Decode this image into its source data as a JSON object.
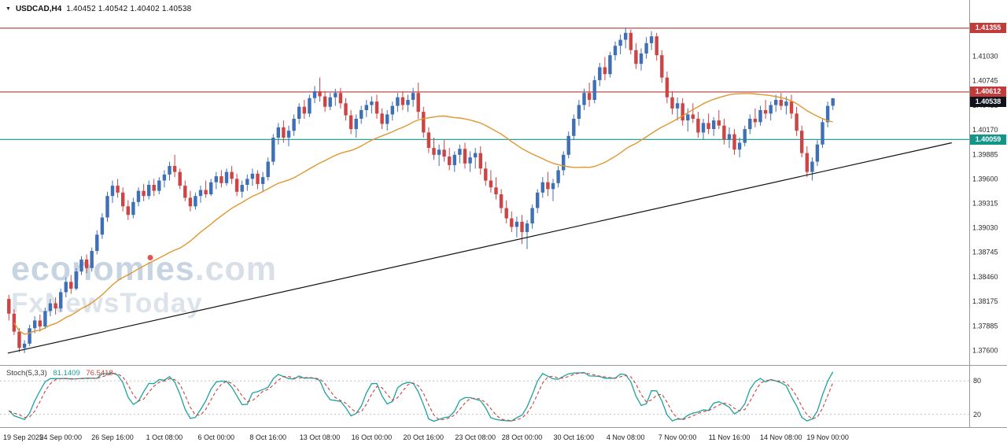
{
  "header": {
    "caret": "▼",
    "symbol_tf": "USDCAD,H4",
    "ohlc": "1.40452 1.40542 1.40402 1.40538"
  },
  "watermark": {
    "part1": "econom",
    "part_i": "ı",
    "part2": "es",
    "suffix": ".com",
    "line2": "FxNewsToday"
  },
  "stoch": {
    "label": "Stoch(5,3,3)",
    "k_value": "81.1409",
    "d_value": "76.5418",
    "k_period": 5,
    "d_period": 3,
    "slowing": 3,
    "levels": [
      80,
      20
    ],
    "level_labels": [
      "80",
      "20"
    ],
    "k_color": "#1ba39c",
    "d_color": "#cc4040",
    "range": [
      0,
      100
    ]
  },
  "colors": {
    "up": "#3f6fb4",
    "down": "#cc4444",
    "ma": "#e0972f",
    "trendline": "#111111",
    "axis_text": "#2a2a2a",
    "date_text": "#1c1c1c",
    "separator": "#9a9a9a",
    "level_line": "#c0c0c0"
  },
  "chart_data": {
    "type": "candlestick",
    "symbol": "USDCAD",
    "timeframe": "H4",
    "ohlc_display": {
      "open": "1.40452",
      "high": "1.40542",
      "low": "1.40402",
      "close": "1.40538"
    },
    "price_range": [
      1.3745,
      1.415
    ],
    "y_ticks": [
      "1.41030",
      "1.40745",
      "1.40455",
      "1.40170",
      "1.39885",
      "1.39600",
      "1.39315",
      "1.39030",
      "1.38745",
      "1.38460",
      "1.38175",
      "1.37885",
      "1.37600"
    ],
    "x_labels": [
      {
        "label": "19 Sep 2025",
        "i": 0
      },
      {
        "label": "24 Sep 00:00",
        "i": 10
      },
      {
        "label": "26 Sep 16:00",
        "i": 20
      },
      {
        "label": "1 Oct 08:00",
        "i": 30
      },
      {
        "label": "6 Oct 00:00",
        "i": 40
      },
      {
        "label": "8 Oct 16:00",
        "i": 50
      },
      {
        "label": "13 Oct 08:00",
        "i": 60
      },
      {
        "label": "16 Oct 00:00",
        "i": 70
      },
      {
        "label": "20 Oct 16:00",
        "i": 80
      },
      {
        "label": "23 Oct 08:00",
        "i": 90
      },
      {
        "label": "28 Oct 00:00",
        "i": 99
      },
      {
        "label": "30 Oct 16:00",
        "i": 109
      },
      {
        "label": "4 Nov 08:00",
        "i": 119
      },
      {
        "label": "7 Nov 00:00",
        "i": 129
      },
      {
        "label": "11 Nov 16:00",
        "i": 139
      },
      {
        "label": "14 Nov 08:00",
        "i": 149
      },
      {
        "label": "19 Nov 00:00",
        "i": 158
      }
    ],
    "hlines": [
      {
        "price": 1.41355,
        "label": "1.41355",
        "line": "#b03a3a",
        "badge": "#c13b3b"
      },
      {
        "price": 1.40612,
        "label": "1.40612",
        "line": "#b03a3a",
        "badge": "#c13b3b"
      },
      {
        "price": 1.40059,
        "label": "1.40059",
        "line": "#17958a",
        "badge": "#12968a"
      }
    ],
    "current_price": {
      "value": 1.40538,
      "label": "1.40538",
      "badge": "#10121c"
    },
    "trendline": {
      "x1_frac": 0.008,
      "price1": 1.3757,
      "x2_frac": 0.982,
      "price2": 1.4002
    },
    "ma": {
      "type": "smoothed",
      "period": 34
    },
    "candles": [
      [
        1.382,
        1.3825,
        1.3795,
        1.3803
      ],
      [
        1.3803,
        1.3808,
        1.3778,
        1.3782
      ],
      [
        1.3782,
        1.3786,
        1.3758,
        1.3763
      ],
      [
        1.3763,
        1.3772,
        1.3757,
        1.3768
      ],
      [
        1.3768,
        1.379,
        1.3765,
        1.3786
      ],
      [
        1.3786,
        1.38,
        1.378,
        1.3795
      ],
      [
        1.3795,
        1.3802,
        1.3782,
        1.3788
      ],
      [
        1.3788,
        1.381,
        1.3785,
        1.3806
      ],
      [
        1.3806,
        1.382,
        1.38,
        1.3815
      ],
      [
        1.3815,
        1.3822,
        1.3802,
        1.3809
      ],
      [
        1.3809,
        1.3832,
        1.3805,
        1.3828
      ],
      [
        1.3828,
        1.3845,
        1.3822,
        1.384
      ],
      [
        1.384,
        1.3848,
        1.3826,
        1.3832
      ],
      [
        1.3832,
        1.3856,
        1.383,
        1.3852
      ],
      [
        1.3852,
        1.387,
        1.3848,
        1.3866
      ],
      [
        1.3866,
        1.3872,
        1.385,
        1.3856
      ],
      [
        1.3856,
        1.388,
        1.3852,
        1.3876
      ],
      [
        1.3876,
        1.39,
        1.3872,
        1.3895
      ],
      [
        1.3895,
        1.392,
        1.389,
        1.3915
      ],
      [
        1.3915,
        1.3945,
        1.391,
        1.394
      ],
      [
        1.394,
        1.3958,
        1.3932,
        1.3952
      ],
      [
        1.3952,
        1.396,
        1.3938,
        1.3944
      ],
      [
        1.3944,
        1.395,
        1.3922,
        1.3928
      ],
      [
        1.3928,
        1.3935,
        1.3912,
        1.3918
      ],
      [
        1.3918,
        1.3938,
        1.3914,
        1.3933
      ],
      [
        1.3933,
        1.395,
        1.3928,
        1.3946
      ],
      [
        1.3946,
        1.3954,
        1.3934,
        1.394
      ],
      [
        1.394,
        1.3958,
        1.3936,
        1.3953
      ],
      [
        1.3953,
        1.396,
        1.394,
        1.3946
      ],
      [
        1.3946,
        1.3962,
        1.3942,
        1.3958
      ],
      [
        1.3958,
        1.397,
        1.395,
        1.3965
      ],
      [
        1.3965,
        1.398,
        1.3958,
        1.3975
      ],
      [
        1.3975,
        1.3988,
        1.3962,
        1.3968
      ],
      [
        1.3968,
        1.3972,
        1.3948,
        1.3952
      ],
      [
        1.3952,
        1.3958,
        1.3934,
        1.3938
      ],
      [
        1.3938,
        1.3946,
        1.3922,
        1.3928
      ],
      [
        1.3928,
        1.3944,
        1.3924,
        1.394
      ],
      [
        1.394,
        1.3952,
        1.3932,
        1.3947
      ],
      [
        1.3947,
        1.3958,
        1.3938,
        1.3942
      ],
      [
        1.3942,
        1.396,
        1.394,
        1.3956
      ],
      [
        1.3956,
        1.3968,
        1.3948,
        1.3963
      ],
      [
        1.3963,
        1.397,
        1.395,
        1.3955
      ],
      [
        1.3955,
        1.3972,
        1.3952,
        1.3968
      ],
      [
        1.3968,
        1.3975,
        1.3954,
        1.396
      ],
      [
        1.396,
        1.3966,
        1.394,
        1.3945
      ],
      [
        1.3945,
        1.3958,
        1.3938,
        1.3953
      ],
      [
        1.3953,
        1.3965,
        1.3946,
        1.396
      ],
      [
        1.396,
        1.3972,
        1.3952,
        1.3966
      ],
      [
        1.3966,
        1.397,
        1.3948,
        1.3954
      ],
      [
        1.3954,
        1.3968,
        1.3946,
        1.3962
      ],
      [
        1.3962,
        1.3985,
        1.3958,
        1.398
      ],
      [
        1.398,
        1.4012,
        1.3976,
        1.4008
      ],
      [
        1.4008,
        1.4025,
        1.4,
        1.402
      ],
      [
        1.402,
        1.4028,
        1.4002,
        1.4008
      ],
      [
        1.4008,
        1.4022,
        1.3998,
        1.4016
      ],
      [
        1.4016,
        1.4035,
        1.401,
        1.403
      ],
      [
        1.403,
        1.4048,
        1.4024,
        1.4044
      ],
      [
        1.4044,
        1.4052,
        1.403,
        1.4036
      ],
      [
        1.4036,
        1.4058,
        1.4032,
        1.4054
      ],
      [
        1.4054,
        1.4068,
        1.4048,
        1.4062
      ],
      [
        1.4062,
        1.4078,
        1.405,
        1.4056
      ],
      [
        1.4056,
        1.4062,
        1.4038,
        1.4044
      ],
      [
        1.4044,
        1.406,
        1.404,
        1.4055
      ],
      [
        1.4055,
        1.4065,
        1.4045,
        1.406
      ],
      [
        1.406,
        1.4066,
        1.4042,
        1.4048
      ],
      [
        1.4048,
        1.4054,
        1.4028,
        1.4034
      ],
      [
        1.4034,
        1.404,
        1.4012,
        1.4018
      ],
      [
        1.4018,
        1.4035,
        1.4008,
        1.403
      ],
      [
        1.403,
        1.4045,
        1.4024,
        1.404
      ],
      [
        1.404,
        1.4052,
        1.4032,
        1.4046
      ],
      [
        1.4046,
        1.4056,
        1.4036,
        1.405
      ],
      [
        1.405,
        1.4058,
        1.403,
        1.4036
      ],
      [
        1.4036,
        1.4042,
        1.4018,
        1.4024
      ],
      [
        1.4024,
        1.404,
        1.4016,
        1.4035
      ],
      [
        1.4035,
        1.405,
        1.4028,
        1.4045
      ],
      [
        1.4045,
        1.406,
        1.4038,
        1.4055
      ],
      [
        1.4055,
        1.4062,
        1.404,
        1.4046
      ],
      [
        1.4046,
        1.4058,
        1.4038,
        1.4052
      ],
      [
        1.4052,
        1.4066,
        1.4044,
        1.406
      ],
      [
        1.406,
        1.4072,
        1.403,
        1.4038
      ],
      [
        1.4038,
        1.4044,
        1.4008,
        1.4014
      ],
      [
        1.4014,
        1.402,
        1.399,
        1.3996
      ],
      [
        1.3996,
        1.4008,
        1.3982,
        1.3988
      ],
      [
        1.3988,
        1.4,
        1.3975,
        1.3994
      ],
      [
        1.3994,
        1.4005,
        1.398,
        1.3986
      ],
      [
        1.3986,
        1.3996,
        1.397,
        1.3976
      ],
      [
        1.3976,
        1.3992,
        1.3968,
        1.3988
      ],
      [
        1.3988,
        1.4,
        1.3978,
        1.3995
      ],
      [
        1.3995,
        1.4002,
        1.3972,
        1.3978
      ],
      [
        1.3978,
        1.3992,
        1.3968,
        1.3985
      ],
      [
        1.3985,
        1.3996,
        1.3972,
        1.399
      ],
      [
        1.399,
        1.3998,
        1.3965,
        1.3972
      ],
      [
        1.3972,
        1.398,
        1.3952,
        1.3958
      ],
      [
        1.3958,
        1.397,
        1.3944,
        1.395
      ],
      [
        1.395,
        1.3962,
        1.3936,
        1.3942
      ],
      [
        1.3942,
        1.3948,
        1.392,
        1.3926
      ],
      [
        1.3926,
        1.3935,
        1.3908,
        1.3914
      ],
      [
        1.3914,
        1.3922,
        1.3898,
        1.3904
      ],
      [
        1.3904,
        1.3916,
        1.3892,
        1.391
      ],
      [
        1.391,
        1.3918,
        1.3884,
        1.3898
      ],
      [
        1.3898,
        1.3912,
        1.3878,
        1.3908
      ],
      [
        1.3908,
        1.393,
        1.3902,
        1.3926
      ],
      [
        1.3926,
        1.3948,
        1.392,
        1.3944
      ],
      [
        1.3944,
        1.3962,
        1.3938,
        1.3956
      ],
      [
        1.3956,
        1.3968,
        1.394,
        1.3948
      ],
      [
        1.3948,
        1.396,
        1.3934,
        1.3955
      ],
      [
        1.3955,
        1.3975,
        1.395,
        1.397
      ],
      [
        1.397,
        1.3992,
        1.3964,
        1.3988
      ],
      [
        1.3988,
        1.4015,
        1.3984,
        1.401
      ],
      [
        1.401,
        1.4035,
        1.4005,
        1.403
      ],
      [
        1.403,
        1.4052,
        1.4022,
        1.4046
      ],
      [
        1.4046,
        1.4065,
        1.404,
        1.406
      ],
      [
        1.406,
        1.4072,
        1.4044,
        1.4052
      ],
      [
        1.4052,
        1.408,
        1.4048,
        1.4075
      ],
      [
        1.4075,
        1.4095,
        1.4068,
        1.409
      ],
      [
        1.409,
        1.4102,
        1.4075,
        1.4082
      ],
      [
        1.4082,
        1.4108,
        1.4078,
        1.4104
      ],
      [
        1.4104,
        1.412,
        1.4098,
        1.4115
      ],
      [
        1.4115,
        1.4128,
        1.4105,
        1.4122
      ],
      [
        1.4122,
        1.4136,
        1.4112,
        1.413
      ],
      [
        1.413,
        1.4134,
        1.4105,
        1.411
      ],
      [
        1.411,
        1.4118,
        1.4088,
        1.4094
      ],
      [
        1.4094,
        1.4112,
        1.4086,
        1.4106
      ],
      [
        1.4106,
        1.4125,
        1.41,
        1.4118
      ],
      [
        1.4118,
        1.4132,
        1.411,
        1.4126
      ],
      [
        1.4126,
        1.413,
        1.4098,
        1.4104
      ],
      [
        1.4104,
        1.411,
        1.4072,
        1.4078
      ],
      [
        1.4078,
        1.4085,
        1.4048,
        1.4055
      ],
      [
        1.4055,
        1.4062,
        1.4035,
        1.4042
      ],
      [
        1.4042,
        1.4055,
        1.4028,
        1.4048
      ],
      [
        1.4048,
        1.4054,
        1.4022,
        1.4028
      ],
      [
        1.4028,
        1.4042,
        1.4015,
        1.4035
      ],
      [
        1.4035,
        1.4048,
        1.4025,
        1.403
      ],
      [
        1.403,
        1.4038,
        1.4008,
        1.4014
      ],
      [
        1.4014,
        1.403,
        1.4006,
        1.4025
      ],
      [
        1.4025,
        1.4036,
        1.4012,
        1.4018
      ],
      [
        1.4018,
        1.4032,
        1.401,
        1.4028
      ],
      [
        1.4028,
        1.404,
        1.4018,
        1.4022
      ],
      [
        1.4022,
        1.403,
        1.4,
        1.4006
      ],
      [
        1.4006,
        1.402,
        1.3996,
        1.4012
      ],
      [
        1.4012,
        1.4018,
        1.3988,
        1.3994
      ],
      [
        1.3994,
        1.4008,
        1.3985,
        1.4002
      ],
      [
        1.4002,
        1.4022,
        1.3998,
        1.4018
      ],
      [
        1.4018,
        1.4035,
        1.4012,
        1.403
      ],
      [
        1.403,
        1.4042,
        1.402,
        1.4026
      ],
      [
        1.4026,
        1.4045,
        1.4022,
        1.404
      ],
      [
        1.404,
        1.4052,
        1.403,
        1.4036
      ],
      [
        1.4036,
        1.405,
        1.4028,
        1.4046
      ],
      [
        1.4046,
        1.4058,
        1.4038,
        1.4052
      ],
      [
        1.4052,
        1.406,
        1.404,
        1.4045
      ],
      [
        1.4045,
        1.4056,
        1.4035,
        1.405
      ],
      [
        1.405,
        1.4058,
        1.403,
        1.4036
      ],
      [
        1.4036,
        1.4044,
        1.401,
        1.4016
      ],
      [
        1.4016,
        1.4022,
        1.3985,
        1.399
      ],
      [
        1.399,
        1.3998,
        1.3962,
        1.3968
      ],
      [
        1.3968,
        1.3985,
        1.3958,
        1.398
      ],
      [
        1.398,
        1.4005,
        1.3975,
        1.4
      ],
      [
        1.4,
        1.403,
        1.3996,
        1.4026
      ],
      [
        1.4026,
        1.405,
        1.402,
        1.4045
      ],
      [
        1.40452,
        1.40542,
        1.40402,
        1.40538
      ]
    ]
  }
}
